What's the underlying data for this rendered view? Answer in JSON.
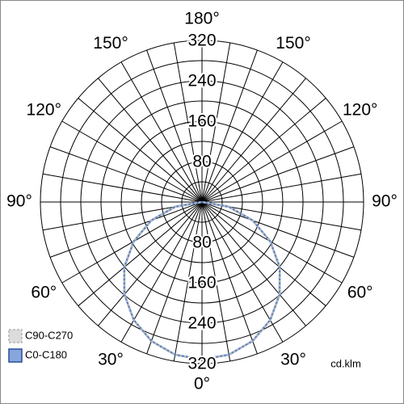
{
  "chart_data": {
    "type": "polar",
    "unit_label": "cd.klm",
    "rlim": [
      0,
      320
    ],
    "rgrid": [
      40,
      80,
      120,
      160,
      200,
      240,
      280,
      320
    ],
    "rticks": [
      80,
      160,
      240,
      320
    ],
    "angle_grid_step": 10,
    "angle_ticks": [
      {
        "value": 0,
        "label": "0°"
      },
      {
        "value": 30,
        "label": "30°"
      },
      {
        "value": 60,
        "label": "60°"
      },
      {
        "value": 90,
        "label": "90°"
      },
      {
        "value": 120,
        "label": "120°"
      },
      {
        "value": 150,
        "label": "150°"
      },
      {
        "value": 180,
        "label": "180°"
      }
    ],
    "angles": [
      0,
      10,
      20,
      30,
      40,
      50,
      60,
      70,
      80,
      90
    ],
    "series": [
      {
        "name": "C90-C270",
        "color": "#b4b4b4",
        "dashed": true,
        "values": [
          312,
          307,
          293,
          270,
          239,
          201,
          156,
          107,
          54,
          0
        ]
      },
      {
        "name": "C0-C180",
        "color": "#4f7fcf",
        "dashed": false,
        "values": [
          312,
          307,
          293,
          270,
          239,
          201,
          156,
          107,
          54,
          0
        ]
      }
    ]
  }
}
